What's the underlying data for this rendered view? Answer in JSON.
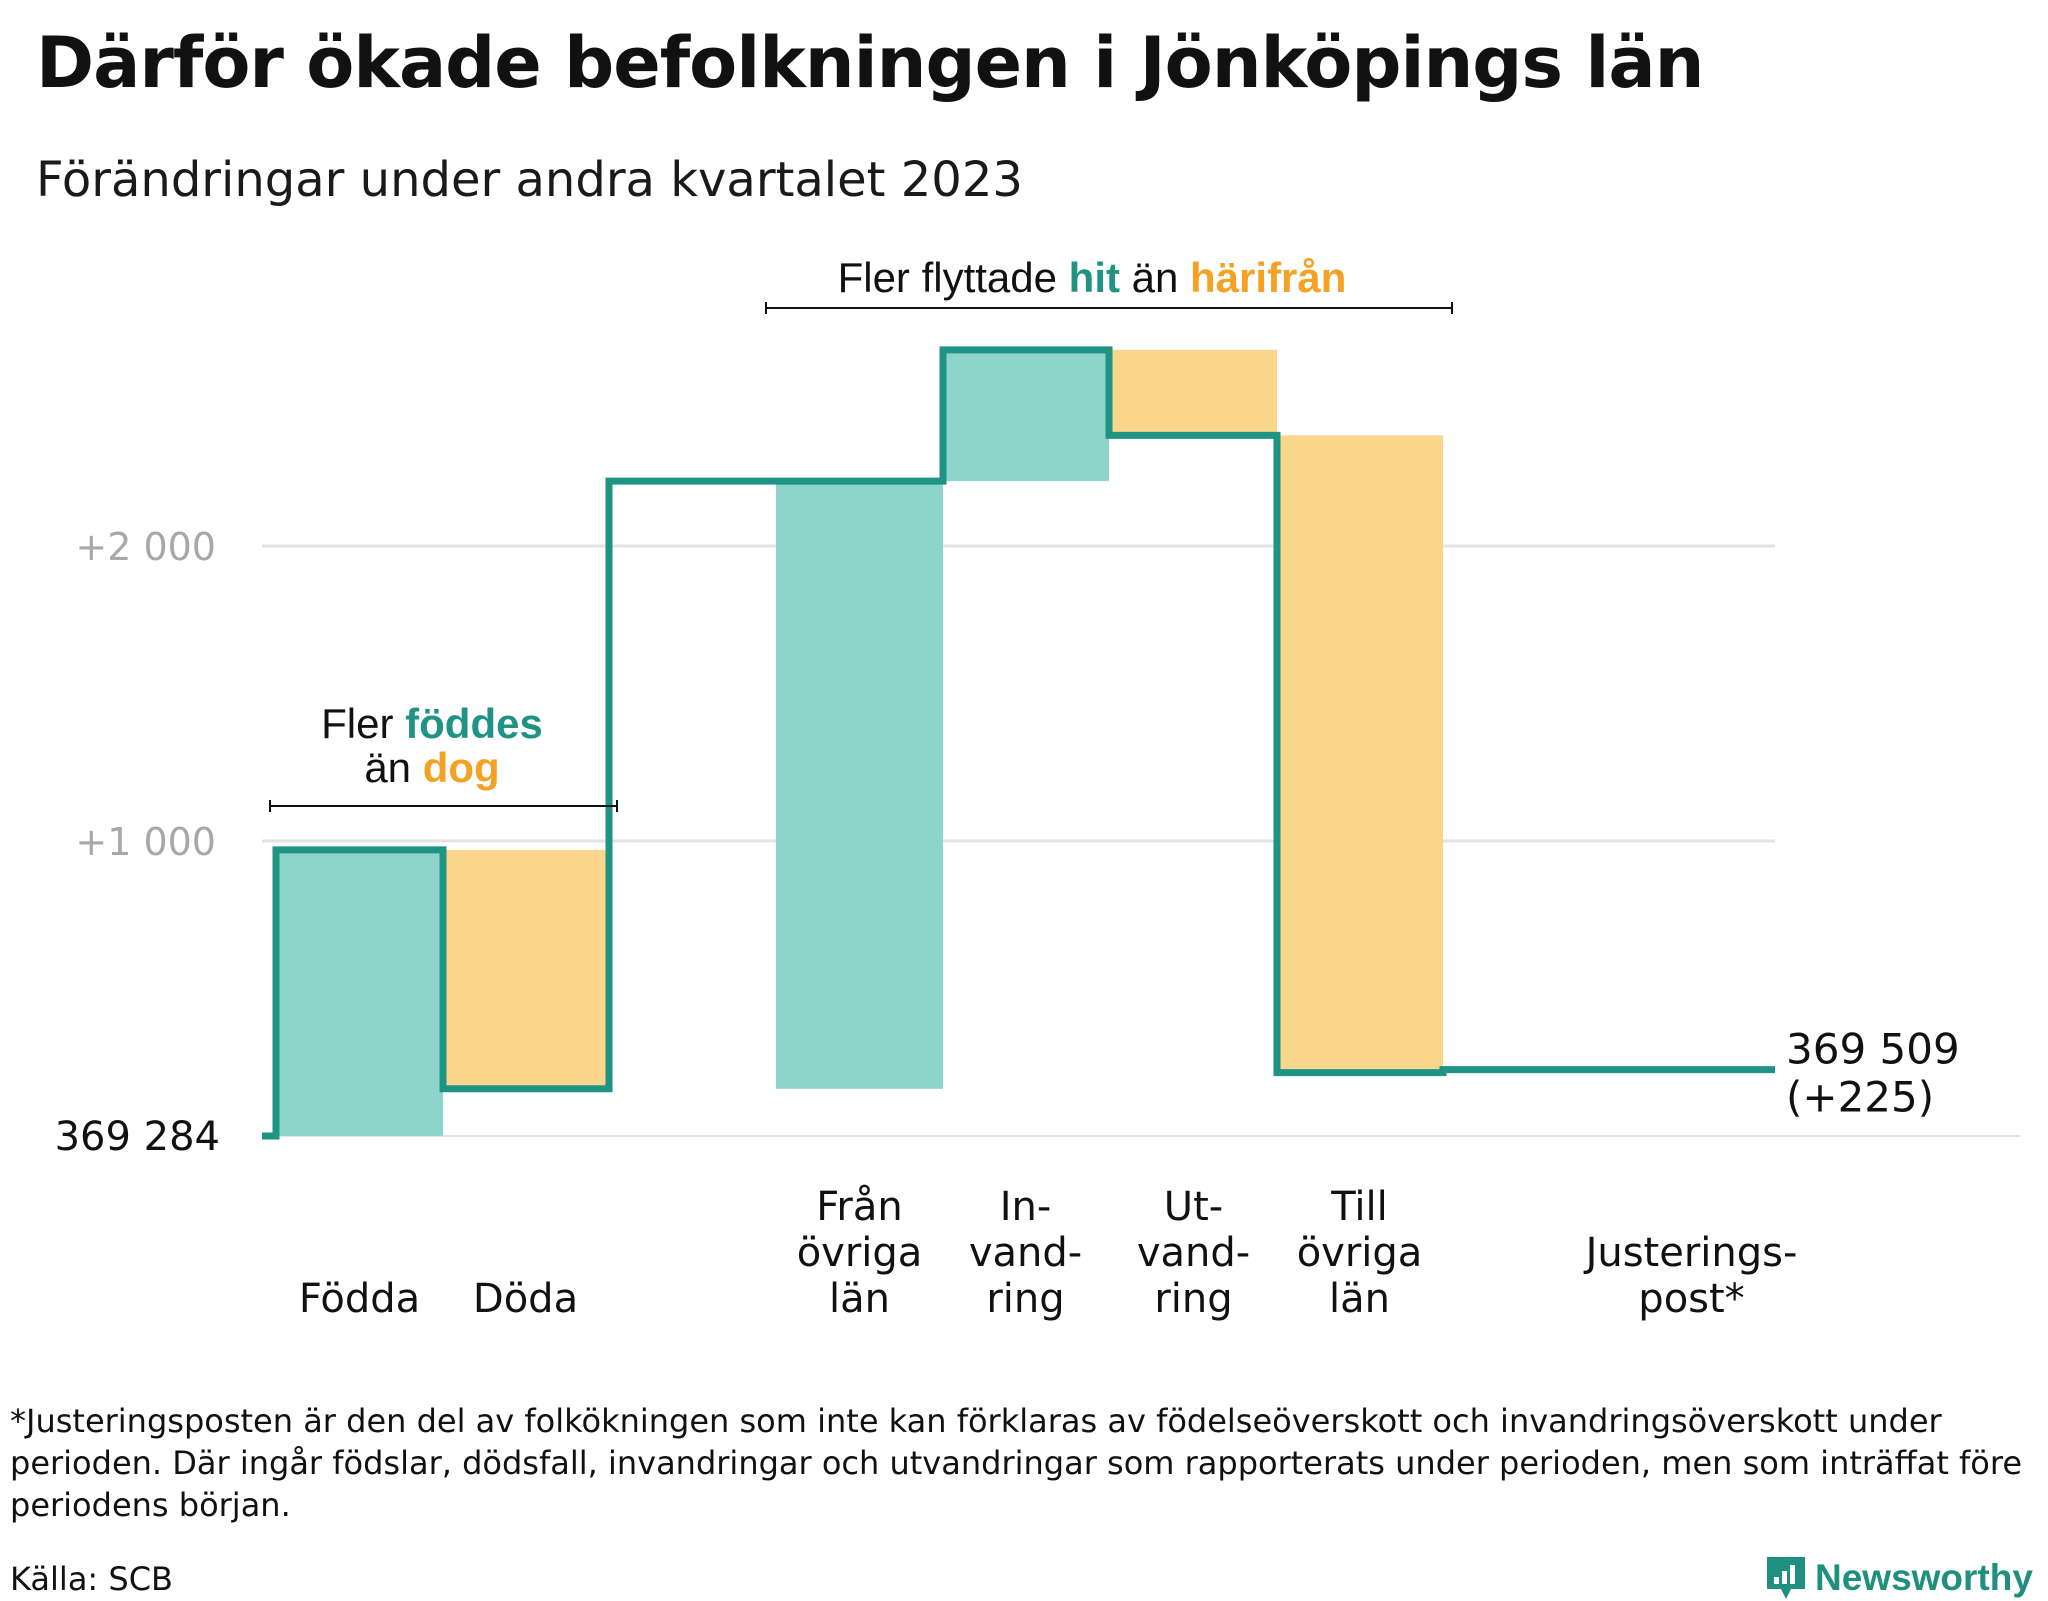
{
  "title": "Därför ökade befolkningen i Jönköpings län",
  "subtitle": "Förändringar under andra kvartalet 2023",
  "footnote": "*Justeringsposten är den del av folkökningen som inte kan förklaras av födelseöverskott och invandringsöverskott under perioden. Där ingår födslar, dödsfall, invandringar och utvandringar som rapporterats under perioden, men som inträffat före periodens början.",
  "source": "Källa: SCB",
  "brand": "Newsworthy",
  "colors": {
    "increase_fill": "#8dd4cb",
    "decrease_fill": "#fad58c",
    "line": "#1f9484",
    "accent_increase_text": "#1f9484",
    "accent_decrease_text": "#f4a124",
    "grid": "#e3e3e3",
    "tick_text": "#a8a8a8"
  },
  "chart_data": {
    "type": "waterfall",
    "start_value": 369284,
    "start_label": "369 284",
    "end_label": "369 509",
    "change_label": "(+225)",
    "categories": [
      [
        "Födda"
      ],
      [
        "Döda"
      ],
      [
        "Från",
        "övriga",
        "län"
      ],
      [
        "In-",
        "vand-",
        "ring"
      ],
      [
        "Ut-",
        "vand-",
        "ring"
      ],
      [
        "Till",
        "övriga",
        "län"
      ],
      [
        "Justerings-",
        "post*"
      ]
    ],
    "values": [
      970,
      -810,
      2060,
      445,
      -290,
      -2160,
      10
    ],
    "yticks": [
      {
        "value": 0,
        "label": "369 284",
        "style": "start"
      },
      {
        "value": 1000,
        "label": "+1 000",
        "style": "grid"
      },
      {
        "value": 2000,
        "label": "+2 000",
        "style": "grid"
      }
    ],
    "ylim": [
      0,
      2650
    ],
    "annotations": [
      {
        "id": "births",
        "parts": [
          {
            "text": "Fler ",
            "role": "plain"
          },
          {
            "text": "föddes",
            "role": "increase"
          },
          {
            "text": "än ",
            "role": "plain",
            "newline": true
          },
          {
            "text": "dog",
            "role": "decrease"
          }
        ]
      },
      {
        "id": "migration",
        "parts": [
          {
            "text": "Fler flyttade ",
            "role": "plain"
          },
          {
            "text": "hit",
            "role": "increase"
          },
          {
            "text": " än ",
            "role": "plain"
          },
          {
            "text": "härifrån",
            "role": "decrease"
          }
        ]
      }
    ]
  }
}
